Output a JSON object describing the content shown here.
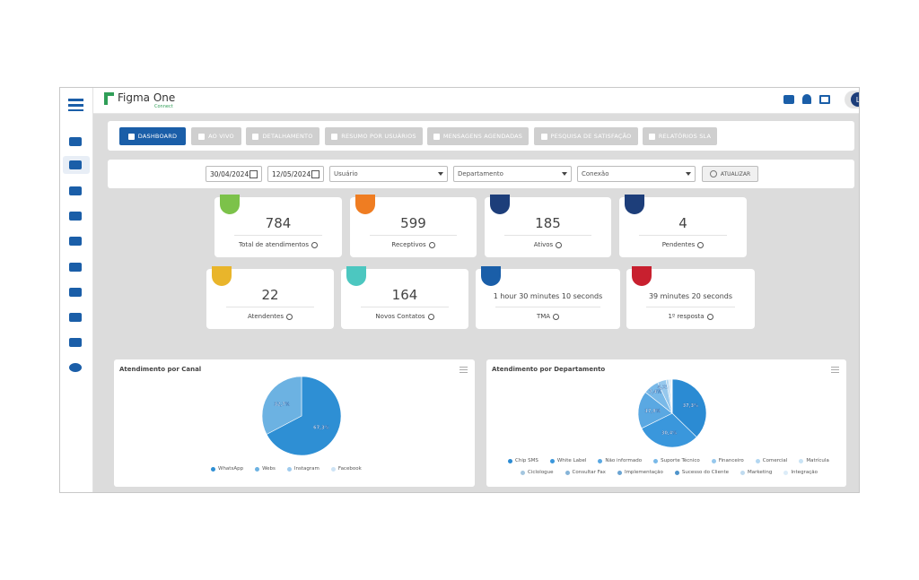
{
  "header": {
    "logo": "Figma One",
    "logo_sub": "Connect",
    "user_initial": "L"
  },
  "tabs": [
    "DASHBOARD",
    "AO VIVO",
    "DETALHAMENTO",
    "RESUMO POR USUÁRIOS",
    "MENSAGENS AGENDADAS",
    "PESQUISA DE SATISFAÇÃO",
    "RELATÓRIOS SLA"
  ],
  "filters": {
    "date_from": "30/04/2024",
    "date_to": "12/05/2024",
    "selects": [
      "Usuário",
      "Departamento",
      "Conexão"
    ],
    "button": "ATUALIZAR"
  },
  "cards": [
    {
      "value": 784,
      "label": "Total de atendimentos"
    },
    {
      "value": 599,
      "label": "Receptivos"
    },
    {
      "value": 185,
      "label": "Ativos"
    },
    {
      "value": 4,
      "label": "Pendentes"
    },
    {
      "value": 22,
      "label": "Atendentes"
    },
    {
      "value": 164,
      "label": "Novos Contatos"
    },
    {
      "value": "1 hour 30 minutes 10 seconds",
      "label": "TMA"
    },
    {
      "value": "39 minutes 20 seconds",
      "label": "1º resposta"
    }
  ],
  "charts": [
    {
      "type": "pie",
      "title": "Atendimento por Canal",
      "categories": [
        "WhatsApp",
        "Webs",
        "Instagram",
        "Facebook"
      ],
      "values": [
        67.3,
        32.7,
        0,
        0
      ],
      "value_labels": [
        "67,3%",
        "32,7%",
        null,
        null
      ],
      "colors": [
        "#2e8fd4",
        "#6cb2e2",
        "#9fcbee",
        "#cde3f5"
      ]
    },
    {
      "type": "pie",
      "title": "Atendimento por Departamento",
      "categories": [
        "Chip SMS",
        "White Label",
        "Não informado",
        "Suporte Técnico",
        "Financeiro",
        "Comercial",
        "Matrícula",
        "Ciclologue",
        "Consultar Fax",
        "Implementação",
        "Sucesso do Cliente",
        "Marketing",
        "Integração"
      ],
      "values": [
        37.3,
        30.4,
        17.9,
        7.4,
        4.1,
        1.2,
        0.8,
        0.4,
        0.2,
        0.1,
        0.1,
        0.05,
        0.05
      ],
      "value_labels": [
        "37,3%",
        "30,4%",
        "17,9%",
        "7,4%",
        "4,1%",
        null,
        null,
        null,
        null,
        null,
        null,
        null,
        null
      ],
      "colors": [
        "#2b8bd3",
        "#3a97dc",
        "#5aa8e2",
        "#79b9e8",
        "#96c8ed",
        "#b3d7f1",
        "#c9e3f5",
        "#a4c6df",
        "#86b4d8",
        "#6aa4d2",
        "#4f94cb",
        "#c0dbef",
        "#dcecf8"
      ]
    }
  ]
}
